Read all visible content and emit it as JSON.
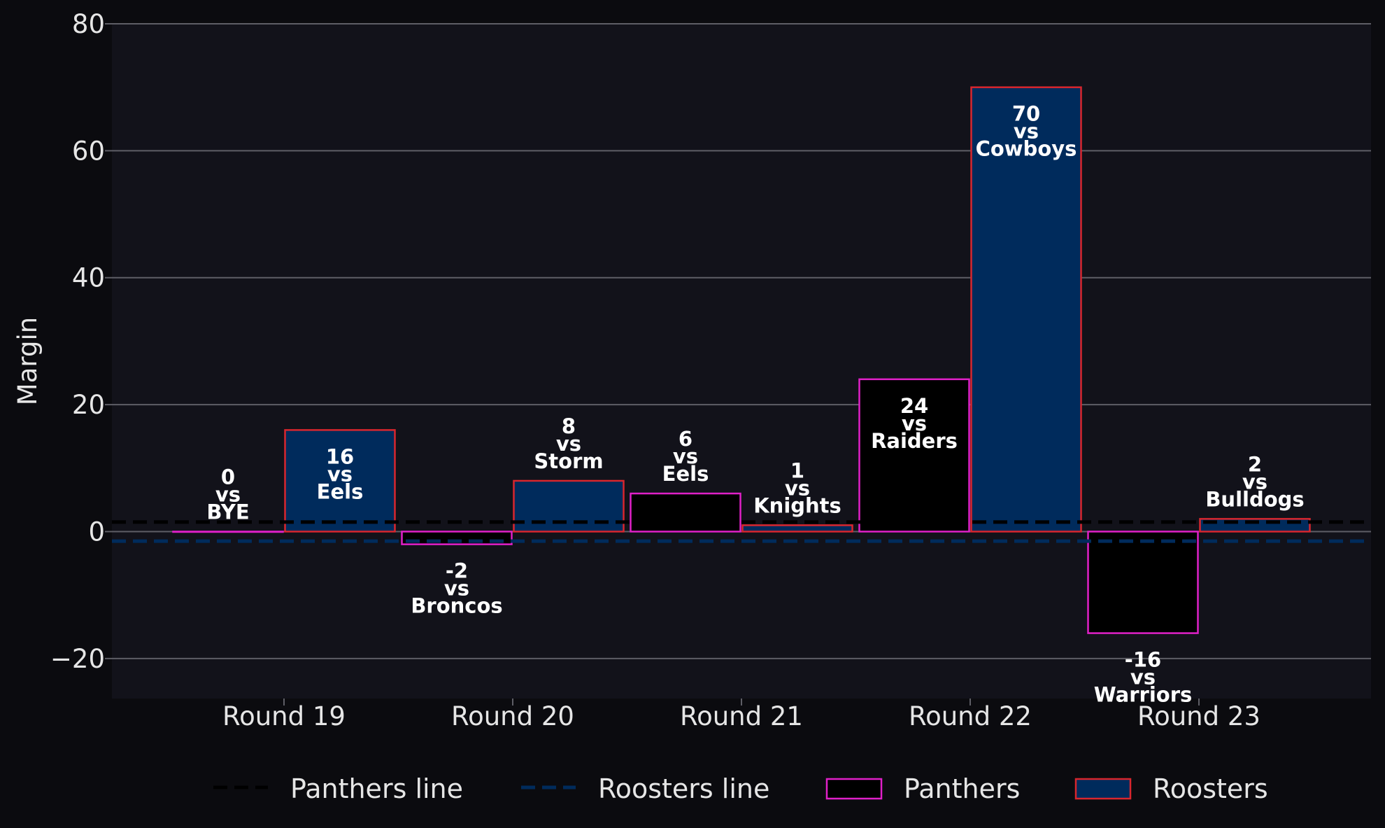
{
  "chart_data": {
    "type": "bar",
    "ylabel": "Margin",
    "ylim": [
      -26.3,
      80
    ],
    "yticks": [
      {
        "value": -20,
        "label": "−20"
      },
      {
        "value": 0,
        "label": "0"
      },
      {
        "value": 20,
        "label": "20"
      },
      {
        "value": 40,
        "label": "40"
      },
      {
        "value": 60,
        "label": "60"
      },
      {
        "value": 80,
        "label": "80"
      }
    ],
    "grid": true,
    "categories": [
      "Round 19",
      "Round 20",
      "Round 21",
      "Round 22",
      "Round 23"
    ],
    "series": [
      {
        "name": "Panthers",
        "fill": "#000000",
        "edge": "#e020c8",
        "values": [
          0,
          -2,
          6,
          24,
          -16
        ],
        "opponents": [
          "BYE",
          "Broncos",
          "Eels",
          "Raiders",
          "Warriors"
        ]
      },
      {
        "name": "Roosters",
        "fill": "#002b5c",
        "edge": "#d8262e",
        "values": [
          16,
          8,
          1,
          70,
          2
        ],
        "opponents": [
          "Eels",
          "Storm",
          "Knights",
          "Cowboys",
          "Bulldogs"
        ]
      }
    ],
    "lines": [
      {
        "name": "Panthers line",
        "value": 1.5,
        "color": "#000000",
        "style": "dashed"
      },
      {
        "name": "Roosters line",
        "value": -1.5,
        "color": "#002b5c",
        "style": "dashed"
      }
    ],
    "vs_text": "vs",
    "legend_position": "bottom-center",
    "colors": {
      "background": "#0b0b0f",
      "plot_background": "#12121a",
      "grid": "#5e5e66",
      "text": "#e6e6e6"
    }
  }
}
